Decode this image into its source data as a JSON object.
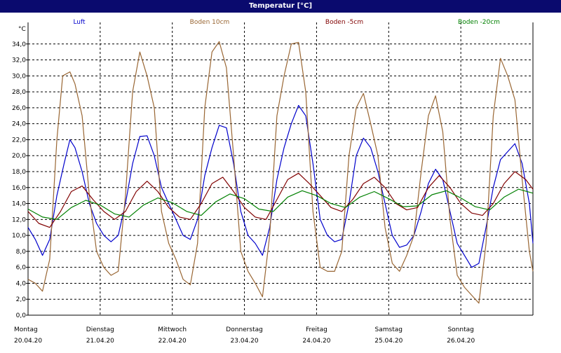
{
  "window": {
    "title": "Temperatur [°C]"
  },
  "colors": {
    "titlebar": "#0a0a6e",
    "luft": "#0000cc",
    "boden10": "#996633",
    "boden5": "#800000",
    "boden20": "#008000",
    "grid": "#000000"
  },
  "chart_data": {
    "type": "line",
    "title": "Temperatur [°C]",
    "ylabel": "°C",
    "ylim": [
      0,
      36
    ],
    "yticks": [
      "0,0",
      "2,0",
      "4,0",
      "6,0",
      "8,0",
      "10,0",
      "12,0",
      "14,0",
      "16,0",
      "18,0",
      "20,0",
      "22,0",
      "24,0",
      "26,0",
      "28,0",
      "30,0",
      "32,0",
      "34,0"
    ],
    "xlim": [
      0,
      7
    ],
    "days": [
      {
        "weekday": "Montag",
        "date": "20.04.20"
      },
      {
        "weekday": "Dienstag",
        "date": "21.04.20"
      },
      {
        "weekday": "Mittwoch",
        "date": "22.04.20"
      },
      {
        "weekday": "Donnerstag",
        "date": "23.04.20"
      },
      {
        "weekday": "Freitag",
        "date": "24.04.20"
      },
      {
        "weekday": "Samstag",
        "date": "25.04.20"
      },
      {
        "weekday": "Sonntag",
        "date": "26.04.20"
      }
    ],
    "grid": true,
    "legend_position": "top",
    "series": [
      {
        "name": "Luft",
        "color": "#0000cc",
        "points": [
          [
            0.0,
            11.0
          ],
          [
            0.1,
            9.5
          ],
          [
            0.2,
            7.5
          ],
          [
            0.3,
            9.5
          ],
          [
            0.4,
            15
          ],
          [
            0.5,
            19
          ],
          [
            0.58,
            22
          ],
          [
            0.65,
            21
          ],
          [
            0.75,
            18
          ],
          [
            0.85,
            14
          ],
          [
            0.95,
            11.5
          ],
          [
            1.05,
            10
          ],
          [
            1.15,
            9.2
          ],
          [
            1.25,
            10
          ],
          [
            1.35,
            14
          ],
          [
            1.45,
            19
          ],
          [
            1.55,
            22.4
          ],
          [
            1.65,
            22.5
          ],
          [
            1.75,
            20
          ],
          [
            1.85,
            16
          ],
          [
            1.95,
            14
          ],
          [
            2.05,
            12
          ],
          [
            2.15,
            10
          ],
          [
            2.25,
            9.5
          ],
          [
            2.35,
            12
          ],
          [
            2.45,
            17.5
          ],
          [
            2.55,
            21
          ],
          [
            2.65,
            23.8
          ],
          [
            2.75,
            23.5
          ],
          [
            2.85,
            19
          ],
          [
            2.95,
            13
          ],
          [
            3.05,
            10
          ],
          [
            3.15,
            9
          ],
          [
            3.25,
            7.5
          ],
          [
            3.35,
            11
          ],
          [
            3.45,
            17
          ],
          [
            3.55,
            21
          ],
          [
            3.65,
            24
          ],
          [
            3.75,
            26.3
          ],
          [
            3.85,
            25
          ],
          [
            3.95,
            19
          ],
          [
            4.05,
            12
          ],
          [
            4.15,
            10
          ],
          [
            4.25,
            9.2
          ],
          [
            4.35,
            9.5
          ],
          [
            4.45,
            14
          ],
          [
            4.55,
            20
          ],
          [
            4.65,
            22.2
          ],
          [
            4.75,
            21
          ],
          [
            4.85,
            18
          ],
          [
            4.95,
            14
          ],
          [
            5.05,
            10
          ],
          [
            5.15,
            8.5
          ],
          [
            5.25,
            8.8
          ],
          [
            5.35,
            10
          ],
          [
            5.45,
            13
          ],
          [
            5.55,
            16.5
          ],
          [
            5.65,
            18.3
          ],
          [
            5.75,
            17
          ],
          [
            5.85,
            13
          ],
          [
            5.95,
            9
          ],
          [
            6.05,
            7.5
          ],
          [
            6.15,
            6
          ],
          [
            6.25,
            6.5
          ],
          [
            6.35,
            11
          ],
          [
            6.45,
            16
          ],
          [
            6.55,
            19.5
          ],
          [
            6.65,
            20.5
          ],
          [
            6.75,
            21.5
          ],
          [
            6.85,
            19
          ],
          [
            6.95,
            14
          ],
          [
            7.0,
            9
          ]
        ]
      },
      {
        "name": "Boden 10cm",
        "color": "#996633",
        "points": [
          [
            0.0,
            4.5
          ],
          [
            0.1,
            4
          ],
          [
            0.2,
            3
          ],
          [
            0.3,
            7
          ],
          [
            0.4,
            22
          ],
          [
            0.48,
            30
          ],
          [
            0.58,
            30.5
          ],
          [
            0.65,
            29
          ],
          [
            0.75,
            25
          ],
          [
            0.85,
            15
          ],
          [
            0.95,
            8
          ],
          [
            1.05,
            6
          ],
          [
            1.15,
            5
          ],
          [
            1.25,
            5.5
          ],
          [
            1.35,
            15
          ],
          [
            1.45,
            28
          ],
          [
            1.55,
            33
          ],
          [
            1.65,
            30
          ],
          [
            1.75,
            26
          ],
          [
            1.85,
            13
          ],
          [
            1.95,
            9
          ],
          [
            2.05,
            7
          ],
          [
            2.15,
            4.5
          ],
          [
            2.25,
            3.8
          ],
          [
            2.35,
            9
          ],
          [
            2.45,
            26
          ],
          [
            2.55,
            33
          ],
          [
            2.65,
            34.3
          ],
          [
            2.75,
            31
          ],
          [
            2.85,
            20
          ],
          [
            2.95,
            8
          ],
          [
            3.05,
            5.5
          ],
          [
            3.15,
            4
          ],
          [
            3.25,
            2.3
          ],
          [
            3.35,
            10
          ],
          [
            3.45,
            25
          ],
          [
            3.55,
            30
          ],
          [
            3.65,
            34
          ],
          [
            3.75,
            34.2
          ],
          [
            3.85,
            28
          ],
          [
            3.95,
            13
          ],
          [
            4.05,
            6
          ],
          [
            4.15,
            5.5
          ],
          [
            4.25,
            5.5
          ],
          [
            4.35,
            8
          ],
          [
            4.45,
            20
          ],
          [
            4.55,
            26
          ],
          [
            4.65,
            27.8
          ],
          [
            4.75,
            24
          ],
          [
            4.85,
            20
          ],
          [
            4.95,
            11
          ],
          [
            5.05,
            6.5
          ],
          [
            5.15,
            5.5
          ],
          [
            5.25,
            7.5
          ],
          [
            5.35,
            10
          ],
          [
            5.45,
            18
          ],
          [
            5.55,
            25
          ],
          [
            5.65,
            27.5
          ],
          [
            5.75,
            23
          ],
          [
            5.85,
            12
          ],
          [
            5.95,
            5
          ],
          [
            6.05,
            3.5
          ],
          [
            6.15,
            2.5
          ],
          [
            6.25,
            1.5
          ],
          [
            6.35,
            9
          ],
          [
            6.45,
            25
          ],
          [
            6.55,
            32.2
          ],
          [
            6.65,
            30
          ],
          [
            6.75,
            27
          ],
          [
            6.85,
            17
          ],
          [
            6.95,
            8
          ],
          [
            7.0,
            5.5
          ]
        ]
      },
      {
        "name": "Boden -5cm",
        "color": "#800000",
        "points": [
          [
            0.0,
            13.0
          ],
          [
            0.15,
            11.5
          ],
          [
            0.3,
            11
          ],
          [
            0.45,
            13
          ],
          [
            0.6,
            15.5
          ],
          [
            0.75,
            16.2
          ],
          [
            0.9,
            14.5
          ],
          [
            1.05,
            13
          ],
          [
            1.2,
            12
          ],
          [
            1.35,
            13
          ],
          [
            1.5,
            15.5
          ],
          [
            1.65,
            16.8
          ],
          [
            1.8,
            15.5
          ],
          [
            1.95,
            13.5
          ],
          [
            2.1,
            12.3
          ],
          [
            2.25,
            12
          ],
          [
            2.4,
            14
          ],
          [
            2.55,
            16.5
          ],
          [
            2.7,
            17.3
          ],
          [
            2.85,
            15.5
          ],
          [
            3.0,
            13.5
          ],
          [
            3.15,
            12.3
          ],
          [
            3.3,
            12
          ],
          [
            3.45,
            14.5
          ],
          [
            3.6,
            17
          ],
          [
            3.75,
            17.8
          ],
          [
            3.9,
            16.5
          ],
          [
            4.05,
            15
          ],
          [
            4.2,
            13.5
          ],
          [
            4.35,
            13
          ],
          [
            4.5,
            14.5
          ],
          [
            4.65,
            16.5
          ],
          [
            4.8,
            17.3
          ],
          [
            4.95,
            16
          ],
          [
            5.1,
            14
          ],
          [
            5.25,
            13.2
          ],
          [
            5.4,
            13.5
          ],
          [
            5.55,
            16
          ],
          [
            5.7,
            17.5
          ],
          [
            5.85,
            16
          ],
          [
            6.0,
            14
          ],
          [
            6.15,
            12.8
          ],
          [
            6.3,
            12.5
          ],
          [
            6.45,
            14
          ],
          [
            6.6,
            16.5
          ],
          [
            6.75,
            18
          ],
          [
            6.9,
            17
          ],
          [
            7.0,
            15.8
          ]
        ]
      },
      {
        "name": "Boden -20cm",
        "color": "#008000",
        "points": [
          [
            0.0,
            13.3
          ],
          [
            0.2,
            12.3
          ],
          [
            0.4,
            12
          ],
          [
            0.6,
            13.5
          ],
          [
            0.8,
            14.4
          ],
          [
            1.0,
            13.8
          ],
          [
            1.2,
            12.7
          ],
          [
            1.4,
            12.3
          ],
          [
            1.6,
            13.8
          ],
          [
            1.8,
            14.7
          ],
          [
            2.0,
            14.1
          ],
          [
            2.2,
            13
          ],
          [
            2.4,
            12.5
          ],
          [
            2.6,
            14.2
          ],
          [
            2.8,
            15.2
          ],
          [
            3.0,
            14.6
          ],
          [
            3.2,
            13.3
          ],
          [
            3.4,
            13
          ],
          [
            3.6,
            14.8
          ],
          [
            3.8,
            15.6
          ],
          [
            4.0,
            15
          ],
          [
            4.2,
            14
          ],
          [
            4.4,
            13.5
          ],
          [
            4.6,
            14.8
          ],
          [
            4.8,
            15.5
          ],
          [
            5.0,
            14.6
          ],
          [
            5.2,
            13.6
          ],
          [
            5.4,
            13.7
          ],
          [
            5.6,
            15.1
          ],
          [
            5.8,
            15.6
          ],
          [
            6.0,
            14.7
          ],
          [
            6.2,
            13.6
          ],
          [
            6.4,
            13.2
          ],
          [
            6.6,
            14.8
          ],
          [
            6.8,
            15.8
          ],
          [
            7.0,
            15.3
          ]
        ]
      }
    ]
  }
}
